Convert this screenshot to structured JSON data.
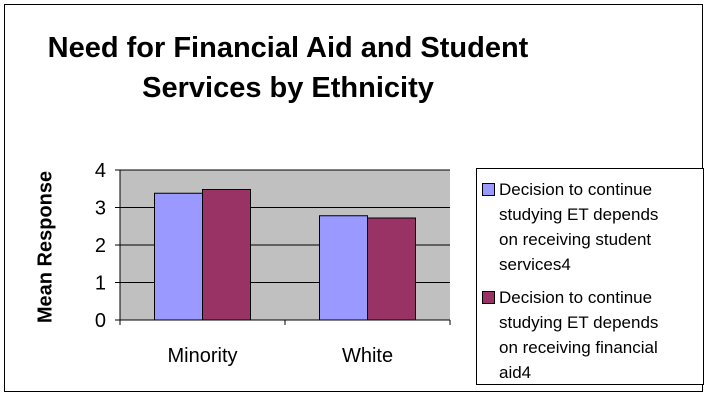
{
  "chart_data": {
    "type": "bar",
    "title": "Need for Financial Aid and Student Services by Ethnicity",
    "title_lines": [
      "Need for Financial Aid and Student",
      "Services by Ethnicity"
    ],
    "xlabel": "",
    "ylabel": "Mean Response",
    "categories": [
      "Minority",
      "White"
    ],
    "ylim": [
      0,
      4
    ],
    "yticks": [
      "0",
      "1",
      "2",
      "3",
      "4"
    ],
    "grid": true,
    "legend_position": "right",
    "series": [
      {
        "name": "Decision to continue studying ET depends on receiving student services4",
        "name_lines": [
          "Decision to continue",
          "studying ET depends",
          "on receiving student",
          "services4"
        ],
        "values": [
          3.38,
          2.78
        ],
        "color": "#9999ff"
      },
      {
        "name": "Decision to continue studying ET depends on receiving financial aid4",
        "name_lines": [
          "Decision to continue",
          "studying ET depends",
          "on receiving financial",
          "aid4"
        ],
        "values": [
          3.48,
          2.72
        ],
        "color": "#993366"
      }
    ],
    "plot_background": "#c0c0c0"
  }
}
